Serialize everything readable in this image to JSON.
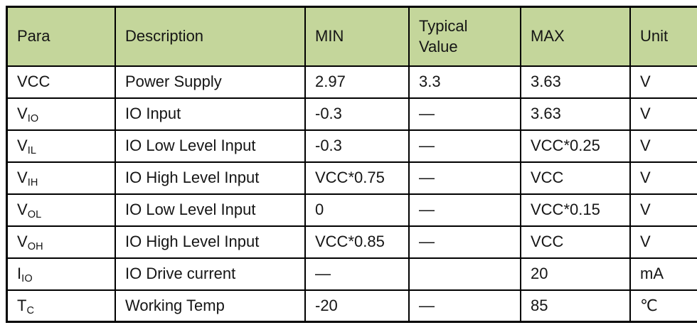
{
  "table": {
    "header_bg": "#c4d69b",
    "border_color": "#000000",
    "columns": {
      "para": "Para",
      "description": "Description",
      "min": "MIN",
      "typical": "Typical Value",
      "max": "MAX",
      "unit": "Unit"
    },
    "rows": [
      {
        "para": {
          "base": "VCC",
          "sub": ""
        },
        "description": "Power Supply",
        "min": "2.97",
        "typical": "3.3",
        "max": "3.63",
        "unit": "V"
      },
      {
        "para": {
          "base": "V",
          "sub": "IO"
        },
        "description": "IO Input",
        "min": "-0.3",
        "typical": "—",
        "max": "3.63",
        "unit": "V"
      },
      {
        "para": {
          "base": "V",
          "sub": "IL"
        },
        "description": "IO Low Level Input",
        "min": "-0.3",
        "typical": "—",
        "max": "VCC*0.25",
        "unit": "V"
      },
      {
        "para": {
          "base": "V",
          "sub": "IH"
        },
        "description": "IO High Level Input",
        "min": "VCC*0.75",
        "typical": "—",
        "max": "VCC",
        "unit": "V"
      },
      {
        "para": {
          "base": "V",
          "sub": "OL"
        },
        "description": "IO Low Level Input",
        "min": "0",
        "typical": "—",
        "max": "VCC*0.15",
        "unit": "V"
      },
      {
        "para": {
          "base": "V",
          "sub": "OH"
        },
        "description": "IO High Level Input",
        "min": "VCC*0.85",
        "typical": "—",
        "max": "VCC",
        "unit": "V"
      },
      {
        "para": {
          "base": "I",
          "sub": "IO"
        },
        "description": "IO Drive current",
        "min": "—",
        "typical": "",
        "max": "20",
        "unit": "mA"
      },
      {
        "para": {
          "base": "T",
          "sub": "C"
        },
        "description": "Working Temp",
        "min": "-20",
        "typical": "—",
        "max": "85",
        "unit": "℃"
      }
    ]
  }
}
